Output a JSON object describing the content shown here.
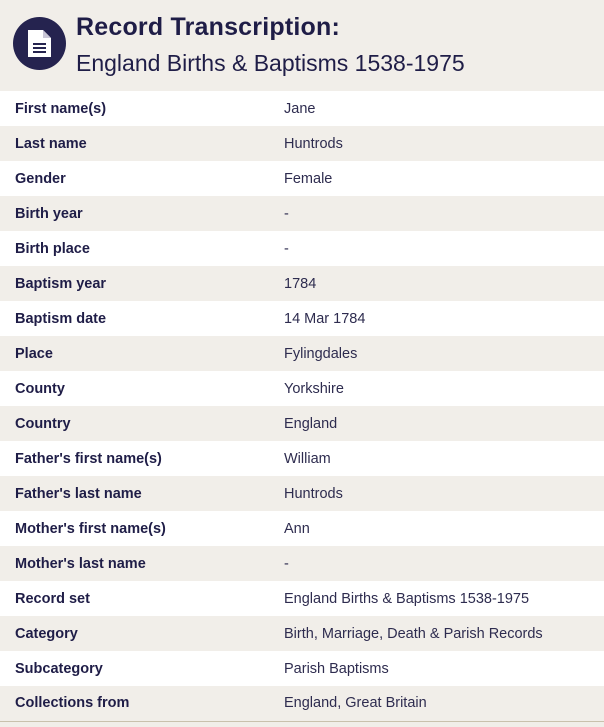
{
  "header": {
    "title": "Record Transcription:",
    "subtitle": "England Births & Baptisms 1538-1975",
    "icon": "document-icon"
  },
  "colors": {
    "navy": "#25234f",
    "background": "#f1eee9"
  },
  "rows": [
    {
      "label": "First name(s)",
      "value": "Jane"
    },
    {
      "label": "Last name",
      "value": "Huntrods"
    },
    {
      "label": "Gender",
      "value": "Female"
    },
    {
      "label": "Birth year",
      "value": "-"
    },
    {
      "label": "Birth place",
      "value": "-"
    },
    {
      "label": "Baptism year",
      "value": "1784"
    },
    {
      "label": "Baptism date",
      "value": "14 Mar 1784"
    },
    {
      "label": "Place",
      "value": "Fylingdales"
    },
    {
      "label": "County",
      "value": "Yorkshire"
    },
    {
      "label": "Country",
      "value": "England"
    },
    {
      "label": "Father's first name(s)",
      "value": "William"
    },
    {
      "label": "Father's last name",
      "value": "Huntrods"
    },
    {
      "label": "Mother's first name(s)",
      "value": "Ann"
    },
    {
      "label": "Mother's last name",
      "value": "-"
    },
    {
      "label": "Record set",
      "value": "England Births & Baptisms 1538-1975"
    },
    {
      "label": "Category",
      "value": "Birth, Marriage, Death & Parish Records"
    },
    {
      "label": "Subcategory",
      "value": "Parish Baptisms"
    },
    {
      "label": "Collections from",
      "value": "England, Great Britain"
    }
  ]
}
